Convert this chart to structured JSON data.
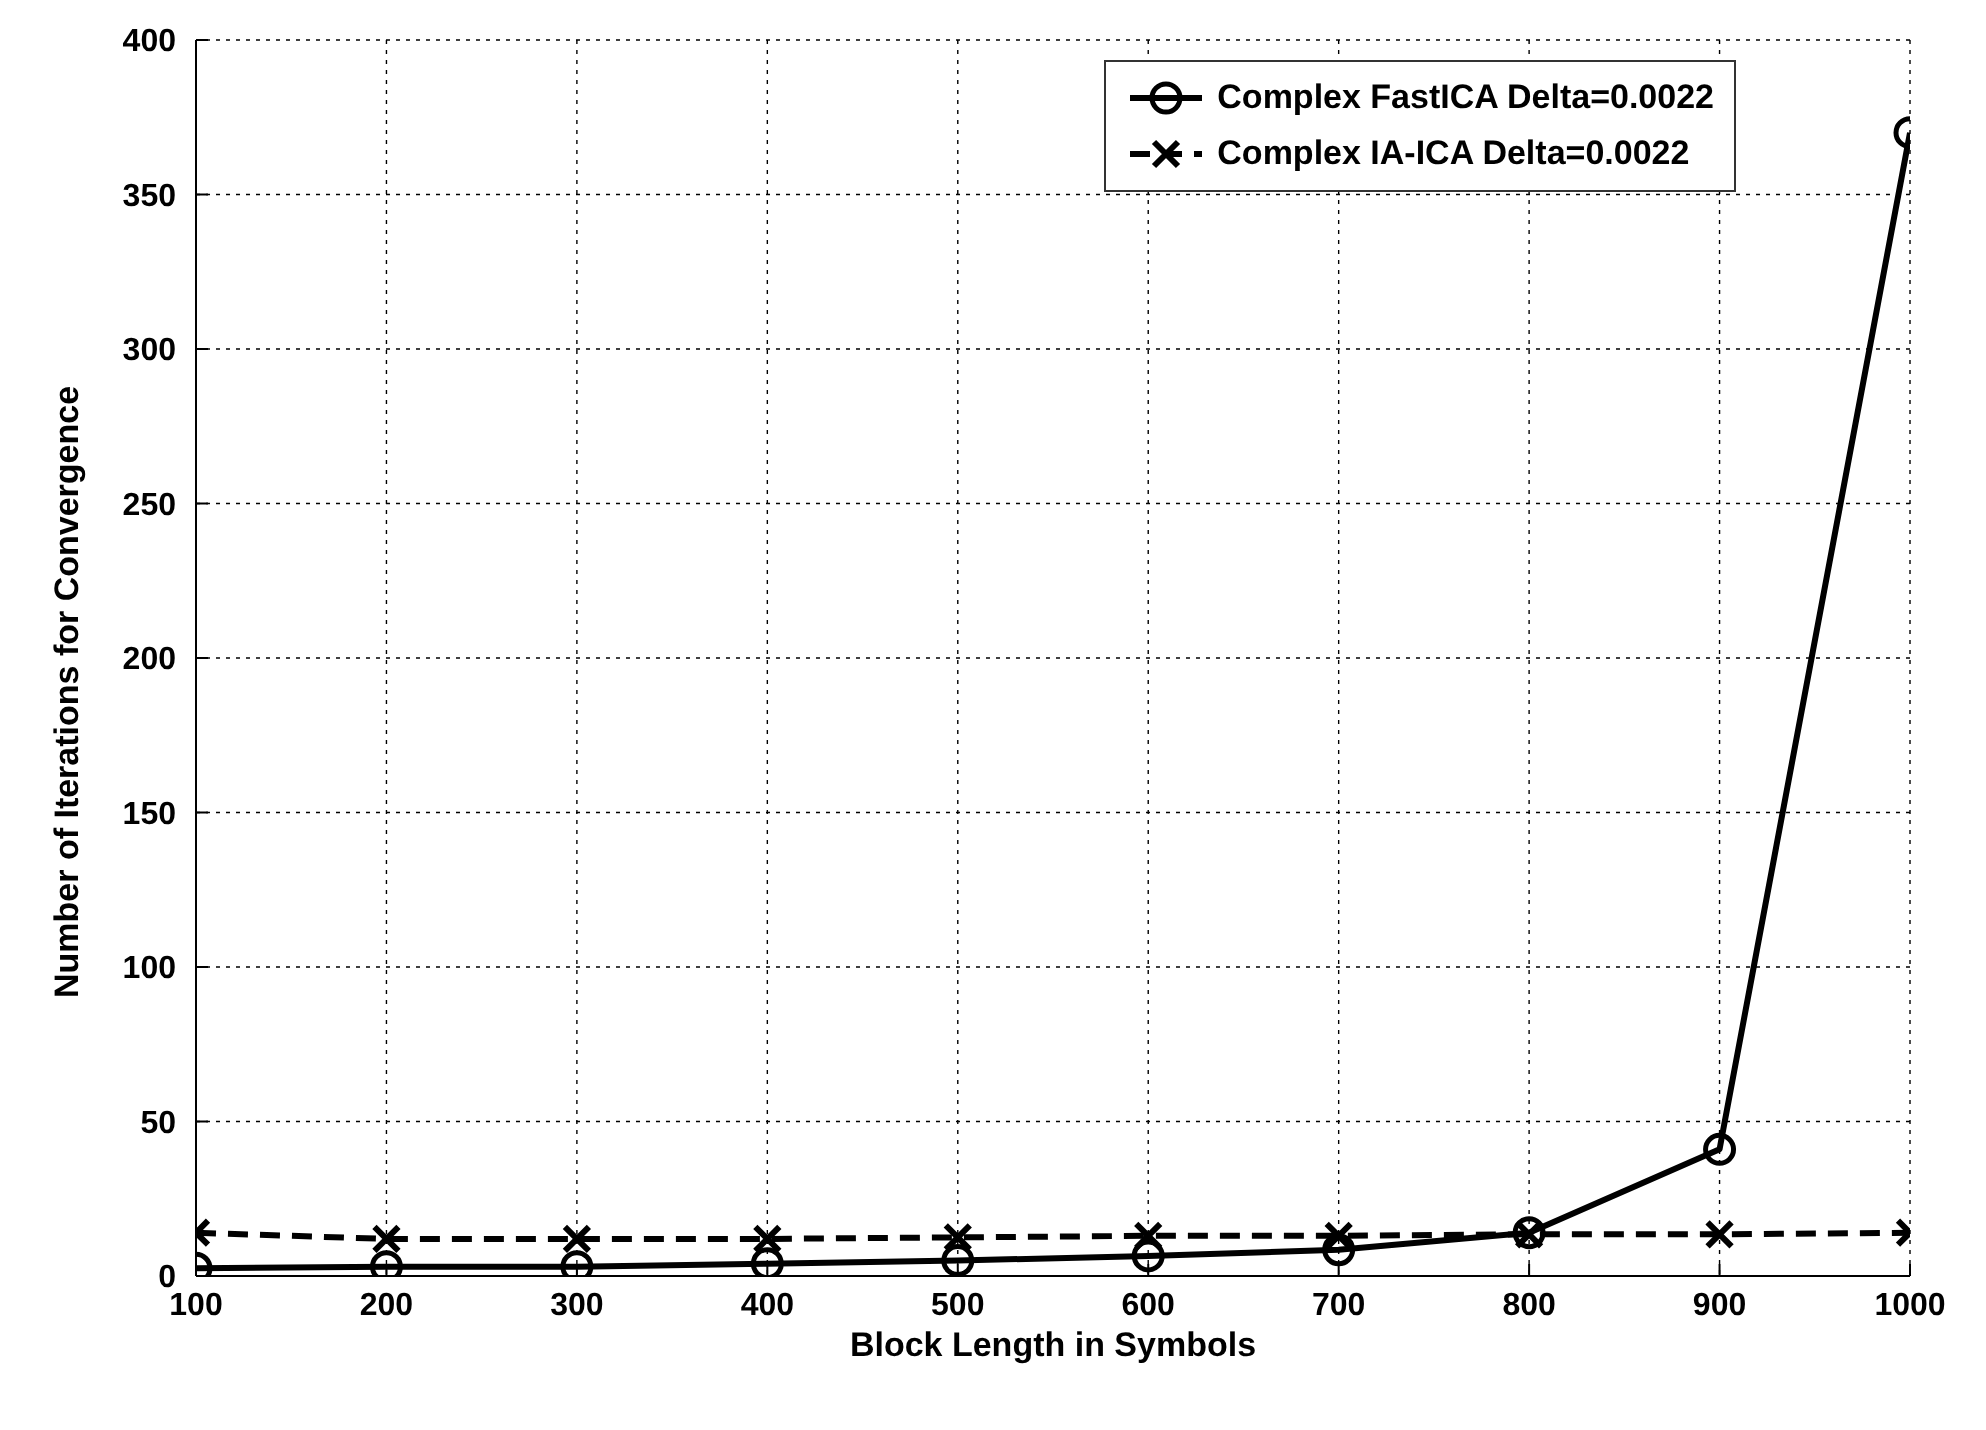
{
  "chart_data": {
    "type": "line",
    "xlabel": "Block Length in Symbols",
    "ylabel": "Number of Iterations for Convergence",
    "x": [
      100,
      200,
      300,
      400,
      500,
      600,
      700,
      800,
      900,
      1000
    ],
    "series": [
      {
        "name": "Complex FastICA Delta=0.0022",
        "color": "#000000",
        "marker": "circle",
        "line_style": "solid",
        "values": [
          2.5,
          3,
          3,
          4,
          5,
          6.5,
          8.5,
          14,
          41,
          370
        ]
      },
      {
        "name": "Complex IA-ICA Delta=0.0022",
        "color": "#000000",
        "marker": "cross",
        "line_style": "dashed",
        "values": [
          14,
          12,
          12,
          12,
          12.5,
          13,
          13,
          13.5,
          13.5,
          14
        ]
      }
    ],
    "xlim": [
      100,
      1000
    ],
    "xticks": [
      100,
      200,
      300,
      400,
      500,
      600,
      700,
      800,
      900,
      1000
    ],
    "ylim": [
      0,
      400
    ],
    "yticks": [
      0,
      50,
      100,
      150,
      200,
      250,
      300,
      350,
      400
    ],
    "grid": true,
    "legend": "top right"
  }
}
